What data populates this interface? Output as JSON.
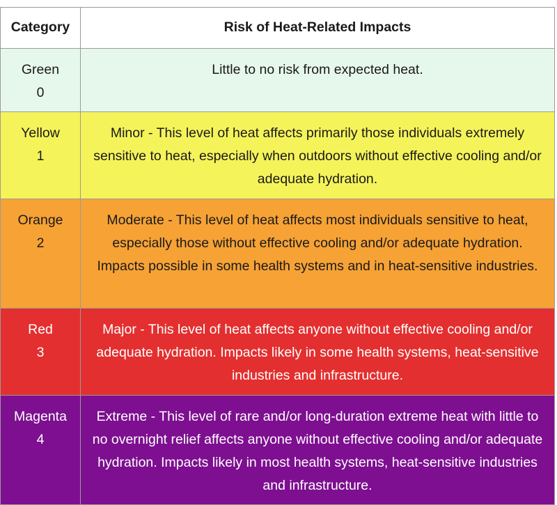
{
  "table": {
    "headers": {
      "category": "Category",
      "risk": "Risk of Heat-Related Impacts"
    },
    "rows": [
      {
        "category": "Green",
        "level": "0",
        "description": "Little to no risk from expected heat.",
        "color": "#e6f8ec"
      },
      {
        "category": "Yellow",
        "level": "1",
        "description": "Minor - This level of heat affects primarily those individuals extremely sensitive to heat, especially when outdoors without effective cooling and/or adequate hydration.",
        "color": "#f5f35a"
      },
      {
        "category": "Orange",
        "level": "2",
        "description": "Moderate - This level of heat affects most individuals sensitive to heat, especially those without effective cooling and/or adequate hydration. Impacts possible in some health systems and in heat-sensitive industries.",
        "color": "#f6a235"
      },
      {
        "category": "Red",
        "level": "3",
        "description": "Major - This level of heat affects anyone without effective cooling and/or adequate hydration. Impacts likely in some health systems, heat-sensitive industries and infrastructure.",
        "color": "#e32f2f"
      },
      {
        "category": "Magenta",
        "level": "4",
        "description": "Extreme - This level of rare and/or long-duration extreme heat with little to no overnight relief affects anyone without effective cooling and/or adequate hydration. Impacts likely in most health systems, heat-sensitive industries and infrastructure.",
        "color": "#7d0f90"
      }
    ]
  }
}
